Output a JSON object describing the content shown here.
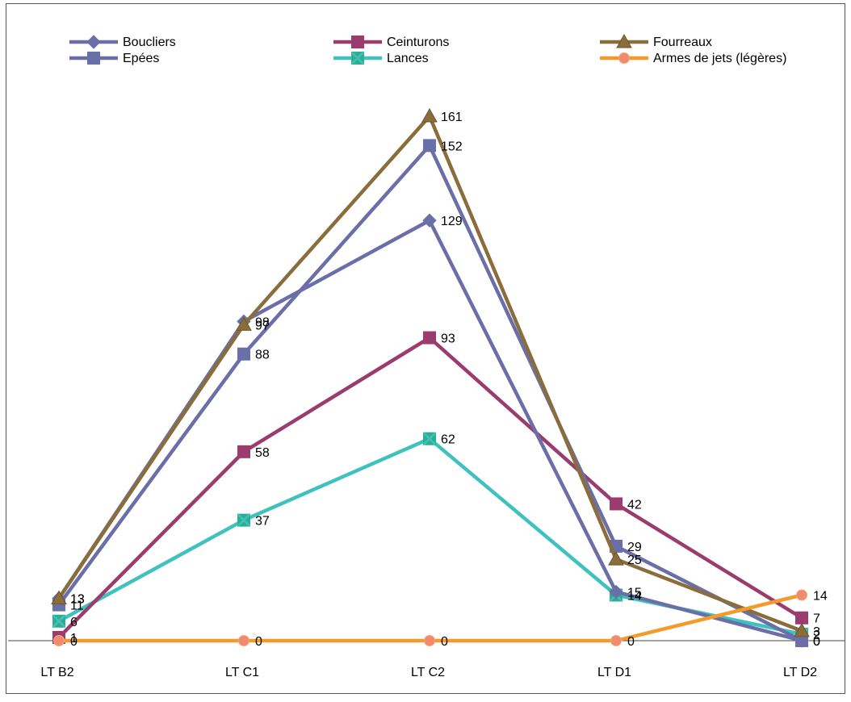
{
  "chart_data": {
    "type": "line",
    "title": "",
    "xlabel": "",
    "ylabel": "",
    "categories": [
      "LT B2",
      "LT C1",
      "LT C2",
      "LT D1",
      "LT D2"
    ],
    "ylim": [
      0,
      170
    ],
    "grid": false,
    "legend_position": "top",
    "series": [
      {
        "name": "Boucliers",
        "values": [
          13,
          98,
          129,
          15,
          0
        ],
        "color": "#6b6fa8",
        "marker": "diamond"
      },
      {
        "name": "Epées",
        "values": [
          11,
          88,
          152,
          29,
          0
        ],
        "color": "#6b6fa8",
        "marker": "square"
      },
      {
        "name": "Ceinturons",
        "values": [
          1,
          58,
          93,
          42,
          7
        ],
        "color": "#9b3c6e",
        "marker": "square"
      },
      {
        "name": "Lances",
        "values": [
          6,
          37,
          62,
          14,
          2
        ],
        "color": "#3fc1c0",
        "marker": "x-square"
      },
      {
        "name": "Fourreaux",
        "values": [
          13,
          97,
          161,
          25,
          3
        ],
        "color": "#8a6d3b",
        "marker": "triangle"
      },
      {
        "name": "Armes de jets (légères)",
        "values": [
          0,
          0,
          0,
          0,
          14
        ],
        "color": "#f39a2b",
        "marker": "circle"
      }
    ]
  }
}
